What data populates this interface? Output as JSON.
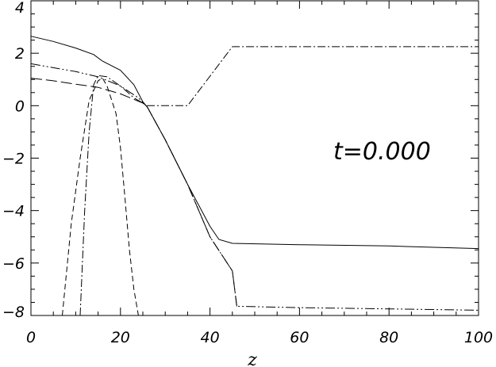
{
  "chart_data": {
    "type": "line",
    "title": "",
    "xlabel": "z",
    "ylabel": "",
    "xlim": [
      0,
      100
    ],
    "ylim": [
      -8,
      4
    ],
    "x_ticks": [
      0,
      20,
      40,
      60,
      80,
      100
    ],
    "y_ticks": [
      4,
      2,
      0,
      -2,
      -4,
      -6,
      -8
    ],
    "annotation": "t=0.000",
    "grid": false,
    "series": [
      {
        "style": "solid",
        "points": [
          [
            0,
            2.65
          ],
          [
            5,
            2.45
          ],
          [
            10,
            2.2
          ],
          [
            14,
            1.95
          ],
          [
            16,
            1.7
          ],
          [
            20,
            1.35
          ],
          [
            23,
            0.8
          ],
          [
            25,
            0.15
          ],
          [
            26,
            -0.05
          ],
          [
            30,
            -1.3
          ],
          [
            35,
            -3.0
          ],
          [
            40,
            -4.6
          ],
          [
            42,
            -5.1
          ],
          [
            45,
            -5.25
          ],
          [
            60,
            -5.3
          ],
          [
            80,
            -5.35
          ],
          [
            100,
            -5.45
          ]
        ]
      },
      {
        "style": "dash-dot-dot",
        "points": [
          [
            0,
            1.6
          ],
          [
            5,
            1.45
          ],
          [
            10,
            1.3
          ],
          [
            15,
            1.1
          ],
          [
            20,
            0.75
          ],
          [
            24,
            0.3
          ],
          [
            26,
            -0.05
          ],
          [
            30,
            -1.3
          ],
          [
            35,
            -3.0
          ],
          [
            40,
            -5.0
          ],
          [
            45,
            -6.3
          ],
          [
            46,
            -7.65
          ],
          [
            60,
            -7.7
          ],
          [
            80,
            -7.75
          ],
          [
            100,
            -7.8
          ]
        ]
      },
      {
        "style": "long-dash",
        "points": [
          [
            0,
            1.05
          ],
          [
            5,
            0.95
          ],
          [
            10,
            0.82
          ],
          [
            15,
            0.7
          ],
          [
            20,
            0.45
          ],
          [
            25,
            0.1
          ],
          [
            26,
            -0.05
          ],
          [
            30,
            -1.3
          ],
          [
            35,
            -3.0
          ],
          [
            40,
            -5.0
          ],
          [
            45,
            -6.3
          ],
          [
            46,
            -7.65
          ]
        ]
      },
      {
        "style": "dashed",
        "points": [
          [
            7,
            -8.0
          ],
          [
            9,
            -4.5
          ],
          [
            11,
            -2.0
          ],
          [
            13,
            0.2
          ],
          [
            15,
            0.95
          ],
          [
            16,
            1.05
          ],
          [
            17,
            0.75
          ],
          [
            19,
            -0.3
          ],
          [
            20,
            -1.6
          ],
          [
            21,
            -3.5
          ],
          [
            22,
            -5.5
          ],
          [
            23,
            -7.0
          ],
          [
            24,
            -8.0
          ]
        ]
      },
      {
        "style": "dash-dot",
        "points": [
          [
            11,
            -8.0
          ],
          [
            12,
            -4.0
          ],
          [
            13,
            -1.0
          ],
          [
            14,
            0.8
          ],
          [
            15,
            1.15
          ],
          [
            17,
            1.1
          ],
          [
            20,
            0.75
          ],
          [
            23,
            0.3
          ],
          [
            26,
            0.0
          ],
          [
            35,
            0.0
          ],
          [
            45,
            2.25
          ],
          [
            60,
            2.25
          ],
          [
            80,
            2.25
          ],
          [
            100,
            2.25
          ]
        ]
      }
    ]
  }
}
